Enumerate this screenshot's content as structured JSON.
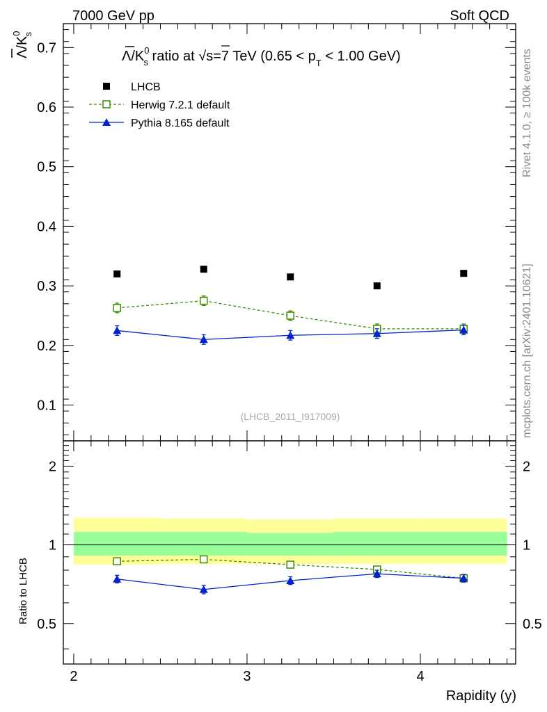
{
  "header": {
    "left": "7000 GeV pp",
    "right": "Soft QCD"
  },
  "side_text": {
    "rivet": "Rivet 4.1.0, ≥ 100k events",
    "mcplots": "mcplots.cern.ch [arXiv:2401.10621]"
  },
  "chart_data": [
    {
      "type": "scatter",
      "panel": "main",
      "title_parts": {
        "observable_bar": "Λ",
        "observable_rest": "/K",
        "observable_sup": "0",
        "observable_sub": "s",
        "middle": " ratio at ",
        "sqrt": "√",
        "sqrt_arg": "s",
        "energy": "=7 TeV (0.65 < p",
        "pt_sub": "T",
        "range_end": " < 1.00 GeV)"
      },
      "ylabel_parts": {
        "bar": "Λ",
        "rest": "/K",
        "sup": "0",
        "sub": "s"
      },
      "watermark": "(LHCB_2011_I917009)",
      "xlim": [
        1.94,
        4.55
      ],
      "ylim": [
        0.04,
        0.74
      ],
      "yticks": [
        0.1,
        0.2,
        0.3,
        0.4,
        0.5,
        0.6,
        0.7
      ],
      "ytick_labels": [
        "0.1",
        "0.2",
        "0.3",
        "0.4",
        "0.5",
        "0.6",
        "0.7"
      ],
      "legend": [
        "LHCB",
        "Herwig 7.2.1 default",
        "Pythia 8.165 default"
      ],
      "legend_position": "top-left",
      "series": [
        {
          "name": "LHCB",
          "marker": "filled-square",
          "color": "#000000",
          "x": [
            2.25,
            2.75,
            3.25,
            3.75,
            4.25
          ],
          "y": [
            0.32,
            0.328,
            0.315,
            0.3,
            0.321
          ]
        },
        {
          "name": "Herwig 7.2.1 default",
          "marker": "open-square",
          "line": "dashed",
          "color": "#3a8c00",
          "x": [
            2.25,
            2.75,
            3.25,
            3.75,
            4.25
          ],
          "y": [
            0.263,
            0.275,
            0.25,
            0.228,
            0.228
          ],
          "err": [
            0.008,
            0.008,
            0.008,
            0.008,
            0.008
          ]
        },
        {
          "name": "Pythia 8.165 default",
          "marker": "filled-triangle",
          "line": "solid",
          "color": "#0022cc",
          "x": [
            2.25,
            2.75,
            3.25,
            3.75,
            4.25
          ],
          "y": [
            0.225,
            0.21,
            0.217,
            0.22,
            0.226
          ],
          "err": [
            0.008,
            0.008,
            0.008,
            0.008,
            0.008
          ]
        }
      ]
    },
    {
      "type": "scatter",
      "panel": "ratio",
      "ylabel": "Ratio to LHCB",
      "xlabel": "Rapidity (y)",
      "xlim": [
        1.94,
        4.55
      ],
      "ylim": [
        0.35,
        2.5
      ],
      "yscale": "log",
      "xticks": [
        2,
        3,
        4
      ],
      "xtick_labels": [
        "2",
        "3",
        "4"
      ],
      "yticks": [
        0.5,
        1,
        2
      ],
      "ytick_labels": [
        "0.5",
        "1",
        "2"
      ],
      "bands": [
        {
          "name": "outer",
          "color": "#ffff99",
          "x": [
            2.0,
            2.5,
            3.0,
            3.5,
            4.0
          ],
          "x2": [
            2.5,
            3.0,
            3.5,
            4.0,
            4.5
          ],
          "low": [
            0.84,
            0.845,
            0.845,
            0.845,
            0.845
          ],
          "high": [
            1.27,
            1.26,
            1.25,
            1.26,
            1.26
          ]
        },
        {
          "name": "inner",
          "color": "#99ff99",
          "x": [
            2.0,
            2.5,
            3.0,
            3.5,
            4.0
          ],
          "x2": [
            2.5,
            3.0,
            3.5,
            4.0,
            4.5
          ],
          "low": [
            0.91,
            0.91,
            0.91,
            0.91,
            0.91
          ],
          "high": [
            1.12,
            1.12,
            1.11,
            1.12,
            1.12
          ]
        }
      ],
      "series": [
        {
          "name": "Herwig 7.2.1 default",
          "marker": "open-square",
          "line": "dashed",
          "color": "#3a8c00",
          "x": [
            2.25,
            2.75,
            3.25,
            3.75,
            4.25
          ],
          "y": [
            0.865,
            0.88,
            0.84,
            0.805,
            0.745
          ],
          "err": [
            0.015,
            0.015,
            0.015,
            0.02,
            0.02
          ]
        },
        {
          "name": "Pythia 8.165 default",
          "marker": "filled-triangle",
          "line": "solid",
          "color": "#0022cc",
          "x": [
            2.25,
            2.75,
            3.25,
            3.75,
            4.25
          ],
          "y": [
            0.74,
            0.675,
            0.73,
            0.775,
            0.745
          ],
          "err": [
            0.025,
            0.025,
            0.025,
            0.025,
            0.025
          ]
        }
      ]
    }
  ]
}
